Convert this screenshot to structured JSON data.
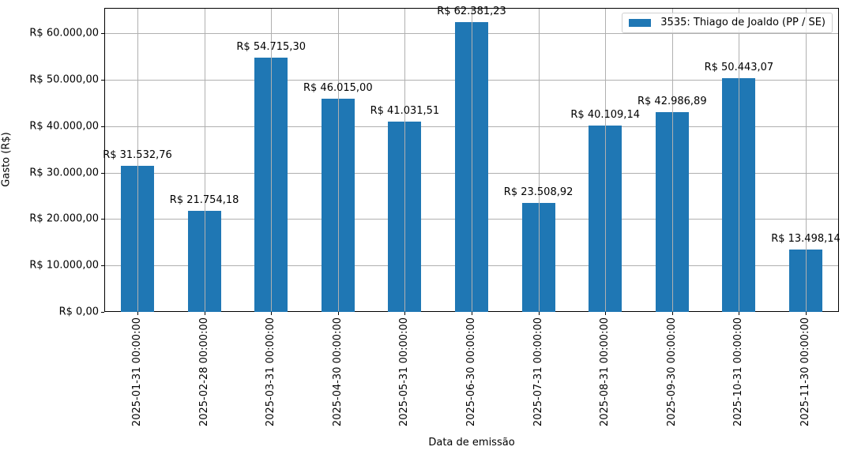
{
  "chart_data": {
    "type": "bar",
    "title": "",
    "xlabel": "Data de emissão",
    "ylabel": "Gasto (R$)",
    "categories": [
      "2025-01-31 00:00:00",
      "2025-02-28 00:00:00",
      "2025-03-31 00:00:00",
      "2025-04-30 00:00:00",
      "2025-05-31 00:00:00",
      "2025-06-30 00:00:00",
      "2025-07-31 00:00:00",
      "2025-08-31 00:00:00",
      "2025-09-30 00:00:00",
      "2025-10-31 00:00:00",
      "2025-11-30 00:00:00"
    ],
    "series": [
      {
        "name": "3535: Thiago de Joaldo (PP / SE)",
        "color": "#1f77b4",
        "values": [
          31532.76,
          21754.18,
          54715.3,
          46015.0,
          41031.51,
          62381.23,
          23508.92,
          40109.14,
          42986.89,
          50443.07,
          13498.14
        ],
        "labels": [
          "R$ 31.532,76",
          "R$ 21.754,18",
          "R$ 54.715,30",
          "R$ 46.015,00",
          "R$ 41.031,51",
          "R$ 62.381,23",
          "R$ 23.508,92",
          "R$ 40.109,14",
          "R$ 42.986,89",
          "R$ 50.443,07",
          "R$ 13.498,14"
        ]
      }
    ],
    "yticks": [
      0,
      10000,
      20000,
      30000,
      40000,
      50000,
      60000
    ],
    "ytick_labels": [
      "R$ 0,00",
      "R$ 10.000,00",
      "R$ 20.000,00",
      "R$ 30.000,00",
      "R$ 40.000,00",
      "R$ 50.000,00",
      "R$ 60.000,00"
    ],
    "ylim": [
      0,
      65500
    ],
    "grid": true,
    "legend_position": "upper right"
  },
  "legend": {
    "label": "3535: Thiago de Joaldo (PP / SE)"
  },
  "axes": {
    "xlabel": "Data de emissão",
    "ylabel": "Gasto (R$)"
  }
}
